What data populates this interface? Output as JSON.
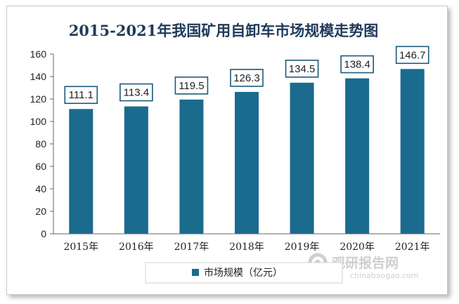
{
  "chart_data": {
    "type": "bar",
    "title": "2015-2021年我国矿用自卸车市场规模走势图",
    "categories": [
      "2015年",
      "2016年",
      "2017年",
      "2018年",
      "2019年",
      "2020年",
      "2021年"
    ],
    "series": [
      {
        "name": "市场规模（亿元）",
        "values": [
          111.1,
          113.4,
          119.5,
          126.3,
          134.5,
          138.4,
          146.7
        ]
      }
    ],
    "value_labels": [
      "111.1",
      "113.4",
      "119.5",
      "126.3",
      "134.5",
      "138.4",
      "146.7"
    ],
    "ylim": [
      0,
      160
    ],
    "yticks": [
      0,
      20,
      40,
      60,
      80,
      100,
      120,
      140,
      160
    ],
    "grid": false,
    "legend_position": "bottom",
    "colors": {
      "bar": "#1a6b8e",
      "label_border": "#1a5a7c",
      "axis": "#666666"
    }
  },
  "watermark": {
    "brand": "观研报告网",
    "url": "chinabaogao.com"
  }
}
